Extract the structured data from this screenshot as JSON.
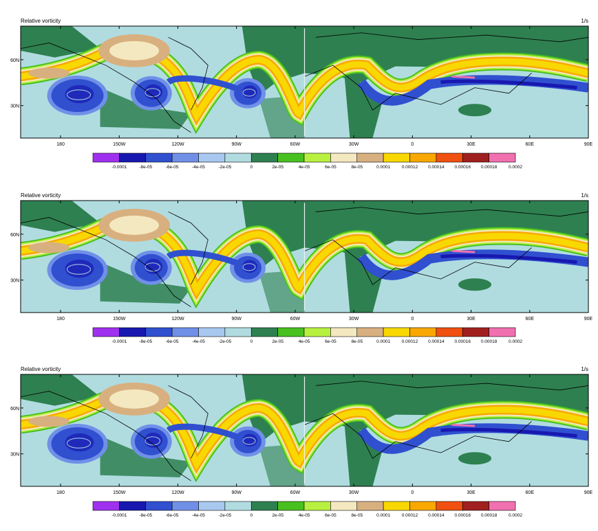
{
  "panels": [
    {
      "title": "Relative vorticity",
      "units": "1/s"
    },
    {
      "title": "Relative vorticity",
      "units": "1/s"
    },
    {
      "title": "Relative vorticity",
      "units": "1/s"
    }
  ],
  "axes": {
    "x_ticks": [
      "180",
      "150W",
      "120W",
      "90W",
      "60W",
      "30W",
      "0",
      "30E",
      "60E",
      "90E"
    ],
    "y_ticks": [
      "60N",
      "30N"
    ]
  },
  "colorbar": {
    "labels": [
      "-0.0001",
      "-8e-05",
      "-6e-05",
      "-4e-05",
      "-2e-05",
      "0",
      "2e-05",
      "4e-05",
      "6e-05",
      "8e-05",
      "0.0001",
      "0.00012",
      "0.00014",
      "0.00016",
      "0.00018",
      "0.0002"
    ],
    "colors": [
      "#a030f0",
      "#1818b0",
      "#3050d0",
      "#7090e8",
      "#a8c8f0",
      "#b0dce0",
      "#2e8050",
      "#48c020",
      "#b8f040",
      "#f4e8c0",
      "#d8b080",
      "#f8d800",
      "#f8a800",
      "#f05010",
      "#a02020",
      "#f070b0"
    ]
  },
  "map_colors": {
    "ocean": "#b0dce0",
    "land": "#2e8050",
    "jet_yellow": "#f8d800",
    "jet_orange": "#f8a800",
    "jet_tan": "#d8b080",
    "jet_cream": "#f4e8c0",
    "vortex_blue": "#3050d0",
    "vortex_dark": "#1818b0",
    "vortex_light": "#7090e8",
    "green": "#48c020",
    "lime": "#b8f040",
    "magenta": "#f070b0"
  }
}
